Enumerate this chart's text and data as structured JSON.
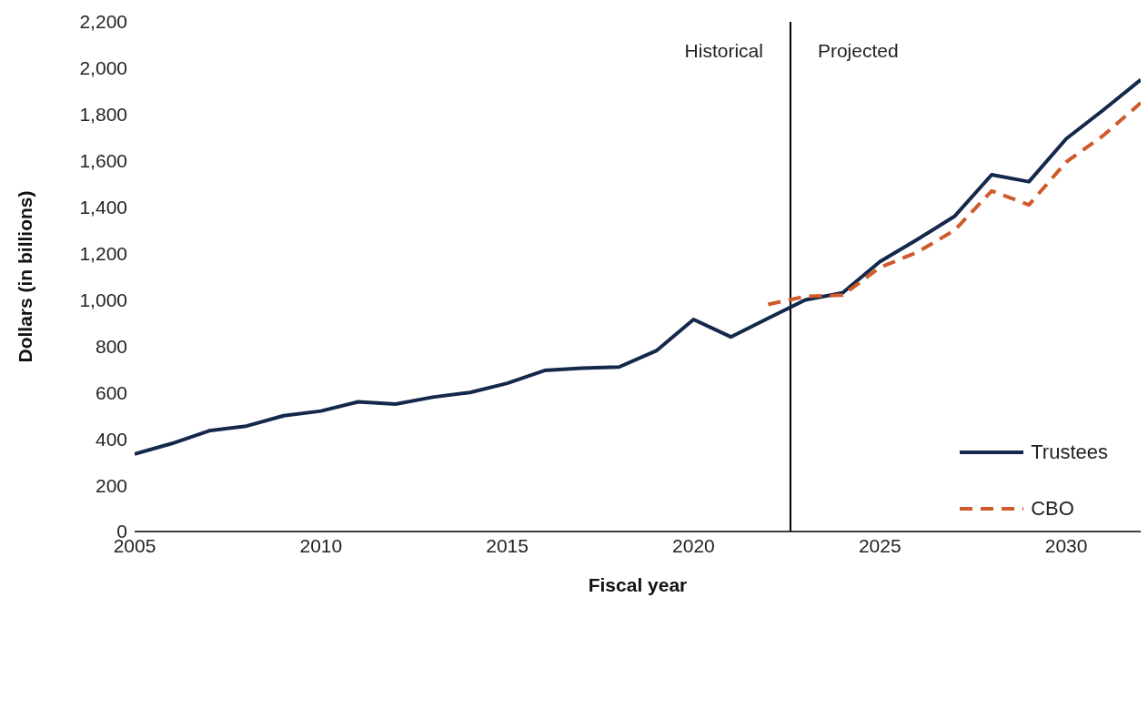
{
  "chart_data": {
    "type": "line",
    "xlabel": "Fiscal year",
    "ylabel": "Dollars (in billions)",
    "xlim": [
      2005,
      2032
    ],
    "xticks": [
      2005,
      2010,
      2015,
      2020,
      2025,
      2030
    ],
    "ylim": [
      0,
      2200
    ],
    "yticks": [
      {
        "value": 0,
        "label": "0"
      },
      {
        "value": 200,
        "label": "200"
      },
      {
        "value": 400,
        "label": "400"
      },
      {
        "value": 600,
        "label": "600"
      },
      {
        "value": 800,
        "label": "800"
      },
      {
        "value": 1000,
        "label": "1,000"
      },
      {
        "value": 1200,
        "label": "1,200"
      },
      {
        "value": 1400,
        "label": "1,400"
      },
      {
        "value": 1600,
        "label": "1,600"
      },
      {
        "value": 1800,
        "label": "1,800"
      },
      {
        "value": 2000,
        "label": "2,000"
      },
      {
        "value": 2200,
        "label": "2,200"
      }
    ],
    "grid": false,
    "legend": "bottom right",
    "marker": "none",
    "series": [
      {
        "name": "Trustees",
        "color": "#14284b",
        "line_style": "solid",
        "x": [
          2005,
          2006,
          2007,
          2008,
          2009,
          2010,
          2011,
          2012,
          2013,
          2014,
          2015,
          2016,
          2017,
          2018,
          2019,
          2020,
          2021,
          2022,
          2023,
          2024,
          2025,
          2026,
          2027,
          2028,
          2029,
          2030,
          2031,
          2032
        ],
        "values": [
          335,
          380,
          435,
          455,
          500,
          520,
          560,
          550,
          580,
          600,
          640,
          695,
          705,
          710,
          780,
          915,
          840,
          920,
          1000,
          1030,
          1165,
          1260,
          1360,
          1540,
          1510,
          1695,
          1820,
          1950
        ]
      },
      {
        "name": "CBO",
        "color": "#d05a2a",
        "line_style": "dashed",
        "x": [
          2022,
          2023,
          2024,
          2025,
          2026,
          2027,
          2028,
          2029,
          2030,
          2031,
          2032
        ],
        "values": [
          980,
          1015,
          1020,
          1140,
          1205,
          1300,
          1470,
          1410,
          1595,
          1710,
          1850
        ]
      }
    ],
    "ref_lines": [
      {
        "axis": "x",
        "value": 2022.6,
        "color": "#000000"
      }
    ],
    "annotations": [
      "Historical",
      "Projected"
    ]
  }
}
